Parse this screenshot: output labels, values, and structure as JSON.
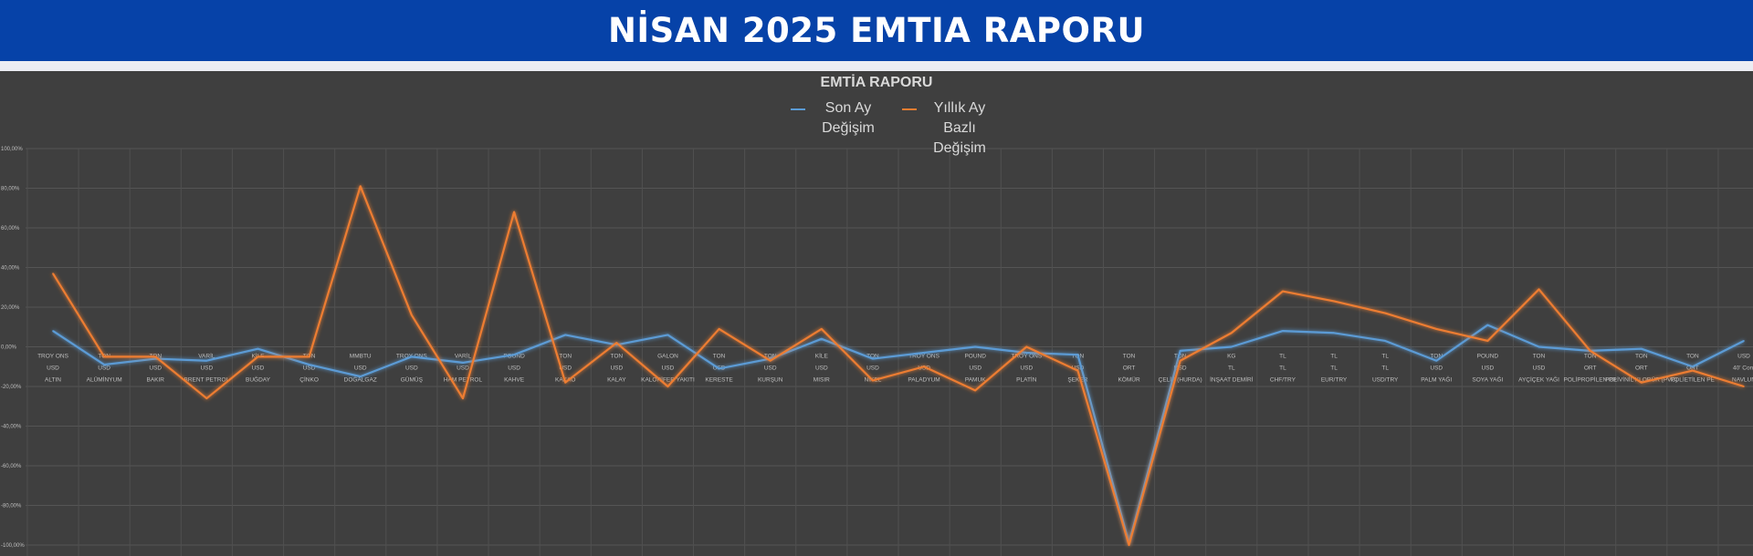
{
  "header": {
    "title": "NİSAN 2025 EMTIA RAPORU"
  },
  "chart_data": {
    "type": "line",
    "title": "EMTİA RAPORU",
    "legend_position": "top",
    "grid": true,
    "ylim": [
      -100,
      100
    ],
    "yticks": [
      "100,00%",
      "80,00%",
      "60,00%",
      "40,00%",
      "20,00%",
      "0,00%",
      "-20,00%",
      "-40,00%",
      "-60,00%",
      "-80,00%",
      "-100,00%"
    ],
    "categories": [
      {
        "unit": "TROY ONS",
        "currency": "USD",
        "name": "ALTIN"
      },
      {
        "unit": "TON",
        "currency": "USD",
        "name": "ALÜMİNYUM"
      },
      {
        "unit": "TON",
        "currency": "USD",
        "name": "BAKIR"
      },
      {
        "unit": "VARİL",
        "currency": "USD",
        "name": "BRENT PETROL"
      },
      {
        "unit": "KİLE",
        "currency": "USD",
        "name": "BUĞDAY"
      },
      {
        "unit": "TON",
        "currency": "USD",
        "name": "ÇİNKO"
      },
      {
        "unit": "MMBTU",
        "currency": "USD",
        "name": "DOĞALGAZ"
      },
      {
        "unit": "TROY ONS",
        "currency": "USD",
        "name": "GÜMÜŞ"
      },
      {
        "unit": "VARİL",
        "currency": "USD",
        "name": "HAM PETROL"
      },
      {
        "unit": "POUND",
        "currency": "USD",
        "name": "KAHVE"
      },
      {
        "unit": "TON",
        "currency": "USD",
        "name": "KAKAO"
      },
      {
        "unit": "TON",
        "currency": "USD",
        "name": "KALAY"
      },
      {
        "unit": "GALON",
        "currency": "USD",
        "name": "KALORİFER YAKITI"
      },
      {
        "unit": "TON",
        "currency": "USD",
        "name": "KERESTE"
      },
      {
        "unit": "TON",
        "currency": "USD",
        "name": "KURŞUN"
      },
      {
        "unit": "KİLE",
        "currency": "USD",
        "name": "MISIR"
      },
      {
        "unit": "TON",
        "currency": "USD",
        "name": "NİKEL"
      },
      {
        "unit": "TROY ONS",
        "currency": "USD",
        "name": "PALADYUM"
      },
      {
        "unit": "POUND",
        "currency": "USD",
        "name": "PAMUK"
      },
      {
        "unit": "TROY ONS",
        "currency": "USD",
        "name": "PLATİN"
      },
      {
        "unit": "TON",
        "currency": "USD",
        "name": "ŞEKER"
      },
      {
        "unit": "TON",
        "currency": "ORT",
        "name": "KÖMÜR"
      },
      {
        "unit": "TON",
        "currency": "USD",
        "name": "ÇELİK (HURDA)"
      },
      {
        "unit": "KG",
        "currency": "TL",
        "name": "İNŞAAT DEMİRİ"
      },
      {
        "unit": "TL",
        "currency": "TL",
        "name": "CHF/TRY"
      },
      {
        "unit": "TL",
        "currency": "TL",
        "name": "EUR/TRY"
      },
      {
        "unit": "TL",
        "currency": "TL",
        "name": "USD/TRY"
      },
      {
        "unit": "TON",
        "currency": "USD",
        "name": "PALM YAĞI"
      },
      {
        "unit": "POUND",
        "currency": "USD",
        "name": "SOYA YAĞI"
      },
      {
        "unit": "TON",
        "currency": "USD",
        "name": "AYÇİÇEK YAĞI"
      },
      {
        "unit": "TON",
        "currency": "ORT",
        "name": "POLİPROPİLEN PP"
      },
      {
        "unit": "TON",
        "currency": "ORT",
        "name": "POLİVİNİL KLORÜR (PVC)"
      },
      {
        "unit": "TON",
        "currency": "ORT",
        "name": "POLİETİLEN PE"
      },
      {
        "unit": "USD",
        "currency": "40' Cont",
        "name": "NAVLUN"
      }
    ],
    "series": [
      {
        "name": "Son Ay Değişim",
        "color": "#5b9bd5",
        "values": [
          8,
          -9,
          -6,
          -7,
          -1,
          -9,
          -15,
          -5,
          -8,
          -4,
          6,
          1,
          6,
          -11,
          -6,
          4,
          -6,
          -3,
          0,
          -3,
          -4,
          -99,
          -2,
          0,
          8,
          7,
          3,
          -7,
          11,
          0,
          -2,
          -1,
          -10,
          3
        ]
      },
      {
        "name": "Yıllık Ay Bazlı Değişim",
        "color": "#ed7d31",
        "values": [
          37,
          -5,
          -5,
          -26,
          -5,
          -5,
          81,
          16,
          -26,
          68,
          -18,
          2,
          -20,
          9,
          -7,
          9,
          -17,
          -10,
          -22,
          0,
          -12,
          -100,
          -7,
          7,
          28,
          23,
          17,
          9,
          3,
          29,
          -2,
          -18,
          -12,
          -20
        ]
      }
    ]
  }
}
